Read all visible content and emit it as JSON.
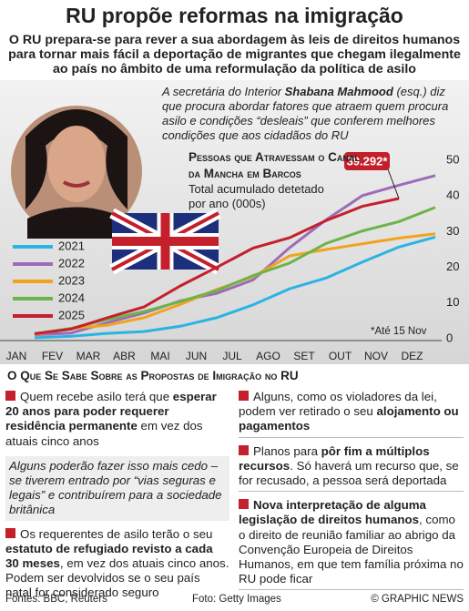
{
  "header": {
    "title": "RU propõe reformas na imigração",
    "subtitle": "O RU prepara-se para rever a sua abordagem às leis de direitos humanos para tornar mais fácil a deportação de migrantes que chegam ilegalmente ao país no âmbito de uma reformulação da política de asilo"
  },
  "quote": [
    {
      "text": "A secretária do Interior ",
      "bold": false
    },
    {
      "text": "Shabana Mahmood",
      "bold": true
    },
    {
      "text": " (esq.) diz que procura abordar fatores que atraem quem procura asilo e condições “desleais” que conferem melhores condições que aos cidadãos do RU",
      "bold": false
    }
  ],
  "chart_data": {
    "type": "line",
    "title": "Pessoas que Atravessam o Canal da Mancha em Barcos",
    "subtitle": "Total acumulado detetado por ano (000s)",
    "annotation": "*Até 15 Nov",
    "categories": [
      "JAN",
      "FEV",
      "MAR",
      "ABR",
      "MAI",
      "JUN",
      "JUL",
      "AGO",
      "SET",
      "OUT",
      "NOV",
      "DEZ"
    ],
    "series": [
      {
        "name": "2021",
        "color": "#2bb3e3",
        "values": [
          0.3,
          0.7,
          1.5,
          2.0,
          3.5,
          5.9,
          9.5,
          14.0,
          17.0,
          21.5,
          25.7,
          28.5
        ]
      },
      {
        "name": "2022",
        "color": "#9c6cb8",
        "values": [
          1.1,
          1.6,
          4.5,
          7.2,
          10.6,
          12.7,
          16.5,
          25.5,
          33.3,
          40.1,
          43.0,
          45.7
        ]
      },
      {
        "name": "2023",
        "color": "#f2a31e",
        "values": [
          1.2,
          2.9,
          3.8,
          5.9,
          9.6,
          13.8,
          17.4,
          23.2,
          25.0,
          26.6,
          28.2,
          29.4
        ]
      },
      {
        "name": "2024",
        "color": "#6cb44a",
        "values": [
          1.4,
          2.9,
          5.4,
          7.6,
          10.4,
          13.5,
          17.7,
          21.2,
          26.7,
          30.2,
          32.8,
          36.8
        ]
      },
      {
        "name": "2025",
        "color": "#c4202c",
        "values": [
          1.4,
          2.7,
          5.9,
          8.9,
          14.8,
          20.0,
          25.4,
          28.3,
          33.1,
          37.1,
          39.292,
          null
        ],
        "value_labels": [
          null,
          null,
          null,
          null,
          null,
          null,
          null,
          null,
          null,
          null,
          "39.292*",
          null
        ]
      }
    ],
    "ylim": [
      0,
      50
    ],
    "yticks": [
      0,
      10,
      20,
      30,
      40,
      50
    ],
    "grid": false
  },
  "section": {
    "title": "O Que Se Sabe Sobre as Propostas de  Imigração no RU",
    "columns": [
      [
        {
          "style": "bullet",
          "segments": [
            {
              "text": "Quem recebe asilo terá que ",
              "bold": false
            },
            {
              "text": "esperar 20 anos para poder requerer residência permanente",
              "bold": true
            },
            {
              "text": " em vez dos atuais cinco anos",
              "bold": false
            }
          ]
        },
        {
          "style": "note",
          "segments": [
            {
              "text": "Alguns poderão fazer isso mais cedo – se tiverem entrado por “vias seguras e legais” e contribuírem para a sociedade britânica",
              "bold": false
            }
          ]
        },
        {
          "style": "bullet",
          "segments": [
            {
              "text": "Os requerentes de asilo terão o seu ",
              "bold": false
            },
            {
              "text": "estatuto de refugiado revisto a cada 30 meses",
              "bold": true
            },
            {
              "text": ", em vez dos atuais cinco anos. Podem ser devolvidos se o seu país natal for considerado seguro",
              "bold": false
            }
          ]
        }
      ],
      [
        {
          "style": "bullet",
          "segments": [
            {
              "text": "Alguns, como os violadores da lei, podem ver retirado o seu ",
              "bold": false
            },
            {
              "text": "alojamento ou pagamentos",
              "bold": true
            }
          ]
        },
        {
          "style": "bullet",
          "segments": [
            {
              "text": "Planos para ",
              "bold": false
            },
            {
              "text": "pôr fim a múltiplos recursos",
              "bold": true
            },
            {
              "text": ". Só haverá um recurso que, se for recusado, a pessoa será deportada",
              "bold": false
            }
          ]
        },
        {
          "style": "bullet",
          "segments": [
            {
              "text": "Nova interpretação de alguma legislação de direitos humanos",
              "bold": true
            },
            {
              "text": ", como o direito de reunião familiar ao abrigo da Convenção Europeia de Direitos Humanos, em que tem família próxima no RU pode ficar",
              "bold": false
            }
          ]
        }
      ]
    ]
  },
  "footer": {
    "sources": "Fontes: BBC, Reuters",
    "photo": "Foto: Getty Images",
    "credit": "© GRAPHIC NEWS"
  }
}
